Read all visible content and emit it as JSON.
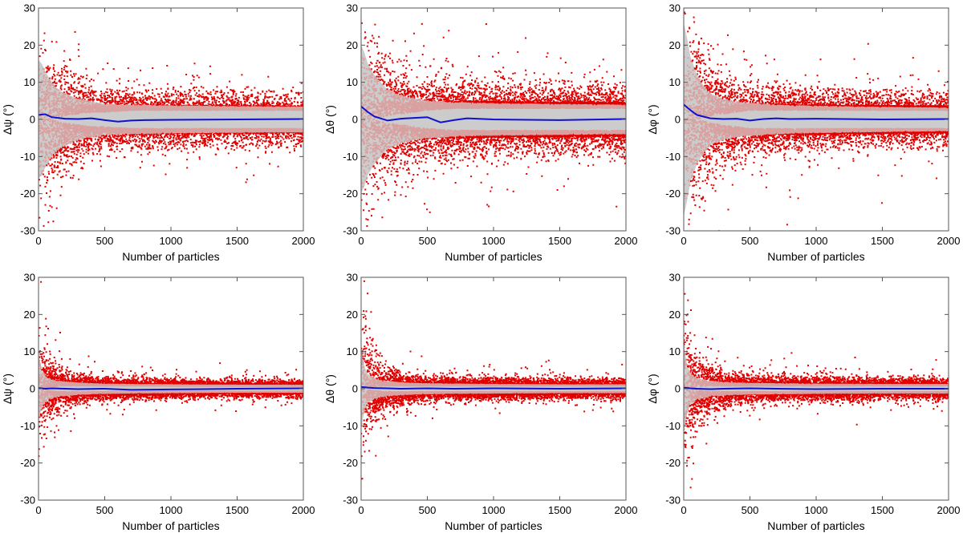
{
  "figure": {
    "colors": {
      "outlier_points": "#e00000",
      "inner_points": "#d9a0a0",
      "spread_band": "#cccccc",
      "mean_line": "#1010d0",
      "axes": "#555555"
    }
  },
  "chart_data": [
    {
      "type": "scatter",
      "panel": "top-left",
      "xlabel": "Number of particles",
      "ylabel": "Δψ (°)",
      "xlim": [
        0,
        2000
      ],
      "ylim": [
        -30,
        30
      ],
      "xticks": [
        "0",
        "500",
        "1000",
        "1500",
        "2000"
      ],
      "yticks": [
        "-30",
        "-20",
        "-10",
        "0",
        "10",
        "20",
        "30"
      ],
      "grid": false,
      "series": [
        {
          "kind": "band",
          "x": [
            0,
            25,
            50,
            100,
            150,
            200,
            300,
            400,
            500,
            700,
            1000,
            1500,
            2000
          ],
          "upper": [
            16,
            15,
            13,
            10,
            8,
            7,
            5.5,
            4.8,
            4.2,
            3.8,
            3.6,
            3.4,
            3.3
          ],
          "lower": [
            -16,
            -15,
            -13,
            -10,
            -8,
            -7,
            -5.5,
            -4.8,
            -4.2,
            -3.8,
            -3.6,
            -3.4,
            -3.3
          ]
        },
        {
          "kind": "mean-line",
          "x": [
            0,
            50,
            100,
            200,
            300,
            400,
            500,
            600,
            700,
            800,
            1000,
            1500,
            2000
          ],
          "y": [
            1.2,
            1.4,
            0.6,
            0.2,
            0.1,
            0.3,
            -0.2,
            -0.6,
            -0.3,
            -0.2,
            -0.1,
            0.0,
            0.1
          ]
        },
        {
          "kind": "points",
          "spread": [
            10,
            9,
            7,
            5.5,
            4.5,
            4.0,
            3.5,
            3.2,
            3.0,
            2.8,
            2.6
          ],
          "spread_x": [
            0,
            100,
            200,
            300,
            400,
            500,
            700,
            1000,
            1300,
            1600,
            2000
          ],
          "min_abs": [
            0,
            0,
            1,
            1.5,
            2,
            2,
            2.5,
            2.5,
            2.5,
            2.5,
            2.5
          ],
          "count": 9000
        }
      ]
    },
    {
      "type": "scatter",
      "panel": "top-middle",
      "xlabel": "Number of particles",
      "ylabel": "Δθ (°)",
      "xlim": [
        0,
        2000
      ],
      "ylim": [
        -30,
        30
      ],
      "xticks": [
        "0",
        "500",
        "1000",
        "1500",
        "2000"
      ],
      "yticks": [
        "-30",
        "-20",
        "-10",
        "0",
        "10",
        "20",
        "30"
      ],
      "grid": false,
      "series": [
        {
          "kind": "band",
          "x": [
            0,
            25,
            50,
            100,
            150,
            200,
            300,
            400,
            500,
            700,
            1000,
            1500,
            2000
          ],
          "upper": [
            20,
            18,
            15,
            12,
            10,
            8,
            6.5,
            5.5,
            5,
            4.5,
            4.2,
            4.0,
            3.8
          ],
          "lower": [
            -20,
            -18,
            -15,
            -12,
            -10,
            -8,
            -6.5,
            -5.5,
            -5,
            -4.5,
            -4.2,
            -4.0,
            -3.8
          ]
        },
        {
          "kind": "mean-line",
          "x": [
            0,
            50,
            100,
            200,
            300,
            400,
            500,
            600,
            700,
            800,
            1000,
            1500,
            2000
          ],
          "y": [
            3.5,
            2.0,
            0.8,
            -0.3,
            0.2,
            0.4,
            0.6,
            -0.8,
            -0.2,
            0.3,
            0.0,
            -0.2,
            0.1
          ]
        },
        {
          "kind": "points",
          "spread": [
            11,
            10,
            8,
            7,
            6,
            5.5,
            5,
            4.6,
            4.3,
            4.1,
            4.0
          ],
          "spread_x": [
            0,
            100,
            200,
            300,
            400,
            500,
            700,
            1000,
            1300,
            1600,
            2000
          ],
          "min_abs": [
            0,
            0,
            1,
            1.5,
            2,
            2.5,
            3,
            3,
            3,
            3,
            3
          ],
          "count": 9000
        }
      ]
    },
    {
      "type": "scatter",
      "panel": "top-right",
      "xlabel": "Number of particles",
      "ylabel": "Δφ (°)",
      "xlim": [
        0,
        2000
      ],
      "ylim": [
        -30,
        30
      ],
      "xticks": [
        "0",
        "500",
        "1000",
        "1500",
        "2000"
      ],
      "yticks": [
        "-30",
        "-20",
        "-10",
        "0",
        "10",
        "20",
        "30"
      ],
      "grid": false,
      "series": [
        {
          "kind": "band",
          "x": [
            0,
            25,
            50,
            100,
            150,
            200,
            300,
            400,
            500,
            700,
            1000,
            1500,
            2000
          ],
          "upper": [
            26,
            22,
            17,
            12,
            9,
            7,
            5.5,
            4.8,
            4.3,
            3.8,
            3.5,
            3.2,
            3.0
          ],
          "lower": [
            -26,
            -22,
            -17,
            -12,
            -9,
            -7,
            -5.5,
            -4.8,
            -4.3,
            -3.8,
            -3.5,
            -3.2,
            -3.0
          ]
        },
        {
          "kind": "mean-line",
          "x": [
            0,
            50,
            100,
            200,
            300,
            400,
            500,
            600,
            700,
            800,
            1000,
            1500,
            2000
          ],
          "y": [
            4.0,
            2.5,
            1.2,
            0.3,
            0.1,
            0.2,
            -0.3,
            0.1,
            0.3,
            0.1,
            0.2,
            0.0,
            0.1
          ]
        },
        {
          "kind": "points",
          "spread": [
            13,
            11,
            8,
            6,
            5,
            4.5,
            4,
            3.5,
            3.2,
            3.0,
            2.8
          ],
          "spread_x": [
            0,
            100,
            200,
            300,
            400,
            500,
            700,
            1000,
            1300,
            1600,
            2000
          ],
          "min_abs": [
            0,
            0,
            1,
            1.5,
            2,
            2.5,
            2.5,
            2.5,
            2.5,
            2.5,
            2.5
          ],
          "count": 9000
        }
      ]
    },
    {
      "type": "scatter",
      "panel": "bottom-left",
      "xlabel": "Number of particles",
      "ylabel": "Δψ (°)",
      "xlim": [
        0,
        2000
      ],
      "ylim": [
        -30,
        30
      ],
      "xticks": [
        "0",
        "500",
        "1000",
        "1500",
        "2000"
      ],
      "yticks": [
        "-30",
        "-20",
        "-10",
        "0",
        "10",
        "20",
        "30"
      ],
      "grid": false,
      "series": [
        {
          "kind": "band",
          "x": [
            0,
            25,
            50,
            100,
            150,
            200,
            300,
            400,
            500,
            700,
            1000,
            1500,
            2000
          ],
          "upper": [
            9,
            5,
            3.5,
            2.5,
            2.0,
            1.8,
            1.5,
            1.3,
            1.2,
            1.1,
            1.0,
            0.9,
            0.9
          ],
          "lower": [
            -9,
            -5,
            -3.5,
            -2.5,
            -2.0,
            -1.8,
            -1.5,
            -1.3,
            -1.2,
            -1.1,
            -1.0,
            -0.9,
            -0.9
          ]
        },
        {
          "kind": "mean-line",
          "x": [
            0,
            50,
            100,
            200,
            300,
            500,
            700,
            1000,
            1500,
            2000
          ],
          "y": [
            0.2,
            0.0,
            0.1,
            0.0,
            -0.1,
            0.0,
            -0.3,
            -0.2,
            0.0,
            0.1
          ]
        },
        {
          "kind": "points",
          "spread": [
            8,
            4,
            2.5,
            1.8,
            1.6,
            1.4,
            1.3,
            1.2,
            1.1,
            1.0,
            1.0
          ],
          "spread_x": [
            0,
            100,
            200,
            300,
            400,
            500,
            700,
            1000,
            1300,
            1600,
            2000
          ],
          "min_abs": [
            0,
            0.5,
            0.8,
            0.8,
            0.8,
            0.8,
            0.8,
            0.7,
            0.7,
            0.7,
            0.7
          ],
          "count": 9000
        }
      ]
    },
    {
      "type": "scatter",
      "panel": "bottom-middle",
      "xlabel": "Number of particles",
      "ylabel": "Δθ (°)",
      "xlim": [
        0,
        2000
      ],
      "ylim": [
        -30,
        30
      ],
      "xticks": [
        "0",
        "500",
        "1000",
        "1500",
        "2000"
      ],
      "yticks": [
        "-30",
        "-20",
        "-10",
        "0",
        "10",
        "20",
        "30"
      ],
      "grid": false,
      "series": [
        {
          "kind": "band",
          "x": [
            0,
            25,
            50,
            100,
            150,
            200,
            300,
            400,
            500,
            700,
            1000,
            1500,
            2000
          ],
          "upper": [
            11,
            6,
            4.0,
            2.8,
            2.2,
            1.9,
            1.6,
            1.4,
            1.3,
            1.2,
            1.1,
            1.0,
            1.0
          ],
          "lower": [
            -11,
            -6,
            -4.0,
            -2.8,
            -2.2,
            -1.9,
            -1.6,
            -1.4,
            -1.3,
            -1.2,
            -1.1,
            -1.0,
            -1.0
          ]
        },
        {
          "kind": "mean-line",
          "x": [
            0,
            50,
            100,
            200,
            300,
            500,
            700,
            1000,
            1500,
            2000
          ],
          "y": [
            0.5,
            0.3,
            0.2,
            0.1,
            0.0,
            0.1,
            0.0,
            0.1,
            0.0,
            0.1
          ]
        },
        {
          "kind": "points",
          "spread": [
            10,
            5,
            3,
            2.2,
            1.8,
            1.6,
            1.5,
            1.4,
            1.3,
            1.2,
            1.2
          ],
          "spread_x": [
            0,
            100,
            200,
            300,
            400,
            500,
            700,
            1000,
            1300,
            1600,
            2000
          ],
          "min_abs": [
            0,
            0.5,
            0.8,
            0.8,
            0.8,
            0.8,
            0.8,
            0.8,
            0.8,
            0.8,
            0.8
          ],
          "count": 9000
        }
      ]
    },
    {
      "type": "scatter",
      "panel": "bottom-right",
      "xlabel": "Number of particles",
      "ylabel": "Δφ (°)",
      "xlim": [
        0,
        2000
      ],
      "ylim": [
        -30,
        30
      ],
      "xticks": [
        "0",
        "500",
        "1000",
        "1500",
        "2000"
      ],
      "yticks": [
        "-30",
        "-20",
        "-10",
        "0",
        "10",
        "20",
        "30"
      ],
      "grid": false,
      "series": [
        {
          "kind": "band",
          "x": [
            0,
            25,
            50,
            100,
            150,
            200,
            300,
            400,
            500,
            700,
            1000,
            1500,
            2000
          ],
          "upper": [
            12,
            6.5,
            4.2,
            3.0,
            2.4,
            2.0,
            1.7,
            1.5,
            1.4,
            1.3,
            1.2,
            1.1,
            1.1
          ],
          "lower": [
            -12,
            -6.5,
            -4.2,
            -3.0,
            -2.4,
            -2.0,
            -1.7,
            -1.5,
            -1.4,
            -1.3,
            -1.2,
            -1.1,
            -1.1
          ]
        },
        {
          "kind": "mean-line",
          "x": [
            0,
            50,
            100,
            200,
            300,
            500,
            700,
            1000,
            1500,
            2000
          ],
          "y": [
            0.3,
            0.1,
            0.0,
            -0.1,
            0.0,
            0.1,
            0.0,
            -0.1,
            0.0,
            0.0
          ]
        },
        {
          "kind": "points",
          "spread": [
            11,
            5,
            3.2,
            2.4,
            2.0,
            1.8,
            1.6,
            1.5,
            1.4,
            1.3,
            1.3
          ],
          "spread_x": [
            0,
            100,
            200,
            300,
            400,
            500,
            700,
            1000,
            1300,
            1600,
            2000
          ],
          "min_abs": [
            0,
            0.5,
            0.8,
            0.8,
            0.8,
            0.8,
            0.8,
            0.8,
            0.8,
            0.8,
            0.8
          ],
          "count": 9000
        }
      ]
    }
  ]
}
